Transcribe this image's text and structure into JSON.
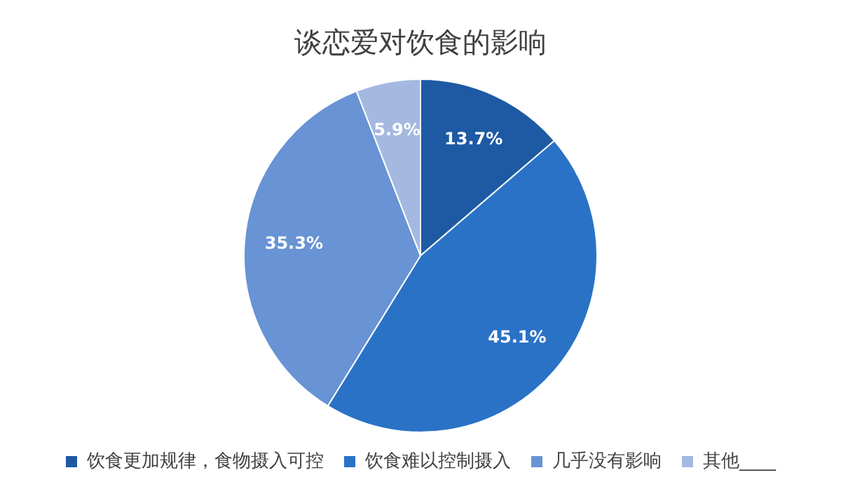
{
  "chart_data": {
    "type": "pie",
    "title": "谈恋爱对饮食的影响",
    "categories": [
      "饮食更加规律，食物摄入可控",
      "饮食难以控制摄入",
      "几乎没有影响",
      "其他____"
    ],
    "values": [
      13.7,
      45.1,
      35.3,
      5.9
    ],
    "colors": [
      "#1d5aa3",
      "#2a72c6",
      "#6893d4",
      "#a5b8e0"
    ],
    "value_labels": [
      "13.7%",
      "45.1%",
      "35.3%",
      "5.9%"
    ],
    "legend": "bottom"
  }
}
